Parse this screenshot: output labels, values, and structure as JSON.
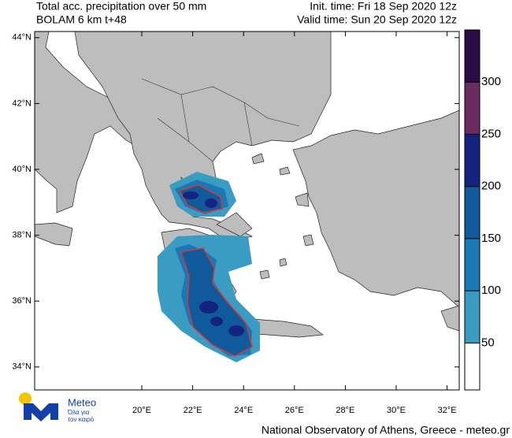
{
  "header": {
    "title_line1": "Total acc. precipitation over 50 mm",
    "title_line2": "BOLAM 6 km t+48",
    "init_time": "Init. time: Fri 18 Sep 2020 12z",
    "valid_time": "Valid time: Sun 20 Sep 2020 12z"
  },
  "map": {
    "lat_ticks": [
      {
        "value": 44,
        "label": "44°N"
      },
      {
        "value": 42,
        "label": "42°N"
      },
      {
        "value": 40,
        "label": "40°N"
      },
      {
        "value": 38,
        "label": "38°N"
      },
      {
        "value": 36,
        "label": "36°N"
      },
      {
        "value": 34,
        "label": "34°N"
      }
    ],
    "lon_ticks": [
      {
        "value": 20,
        "label": "20°E"
      },
      {
        "value": 22,
        "label": "22°E"
      },
      {
        "value": 24,
        "label": "24°E"
      },
      {
        "value": 26,
        "label": "26°E"
      },
      {
        "value": 28,
        "label": "28°E"
      },
      {
        "value": 30,
        "label": "30°E"
      },
      {
        "value": 32,
        "label": "32°E"
      }
    ]
  },
  "colorbar": {
    "levels": [
      50,
      100,
      150,
      200,
      250,
      300
    ],
    "colors": [
      "#ffffff",
      "#3a9cc2",
      "#1a78b5",
      "#0f5a9a",
      "#14237f",
      "#6a2b63",
      "#2b0b47"
    ]
  },
  "logo": {
    "name": "Meteo",
    "slogan1": "Όλα για",
    "slogan2": "τον καιρό"
  },
  "footer": "National Observatory of Athens, Greece - meteo.gr"
}
